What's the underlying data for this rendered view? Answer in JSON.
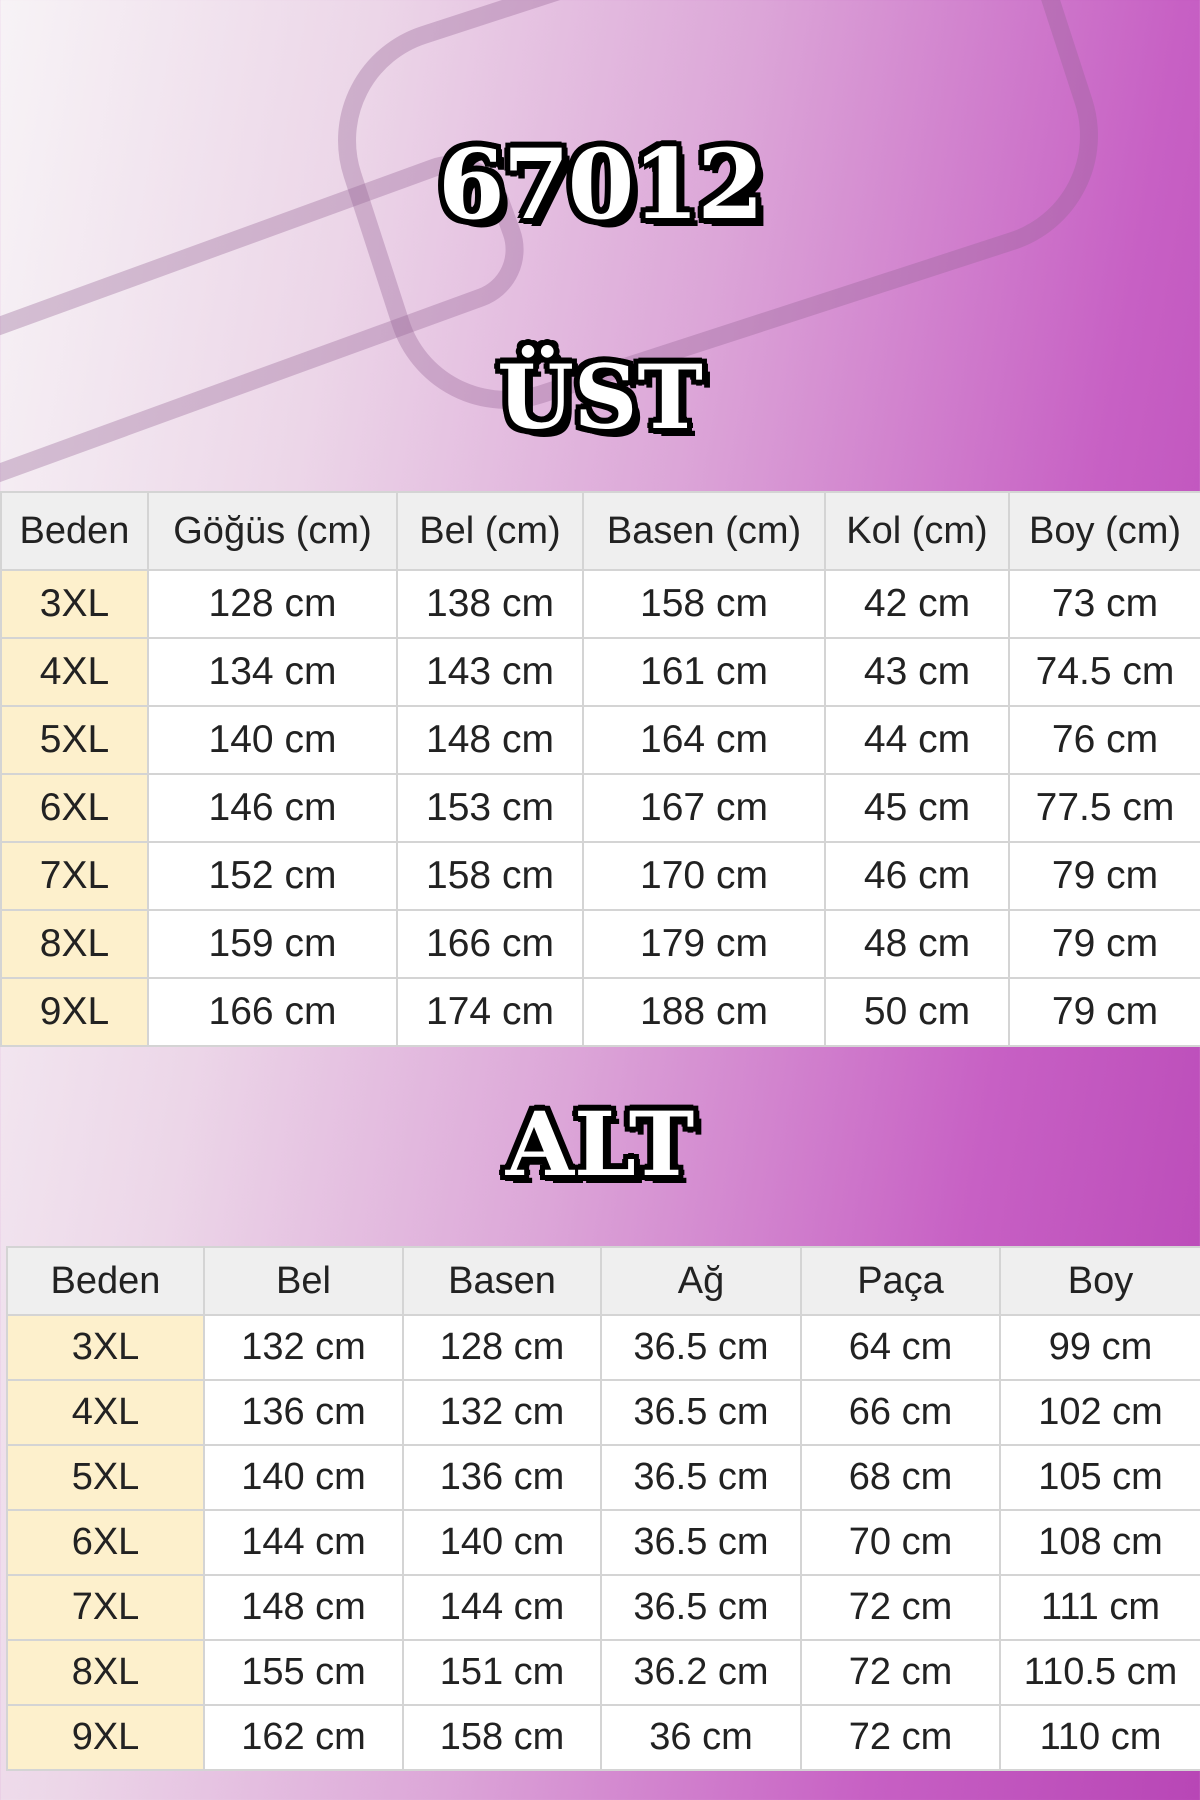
{
  "title": "67012",
  "colors": {
    "background_accent": "#c04fc0",
    "size_cell": "#fdf0cc",
    "header_cell": "#efefef"
  },
  "upper": {
    "heading": "ÜST",
    "columns": [
      "Beden",
      "Göğüs (cm)",
      "Bel (cm)",
      "Basen (cm)",
      "Kol (cm)",
      "Boy (cm)"
    ],
    "rows": [
      [
        "3XL",
        "128 cm",
        "138 cm",
        "158 cm",
        "42 cm",
        "73 cm"
      ],
      [
        "4XL",
        "134 cm",
        "143 cm",
        "161 cm",
        "43 cm",
        "74.5 cm"
      ],
      [
        "5XL",
        "140 cm",
        "148 cm",
        "164 cm",
        "44 cm",
        "76 cm"
      ],
      [
        "6XL",
        "146 cm",
        "153 cm",
        "167 cm",
        "45 cm",
        "77.5 cm"
      ],
      [
        "7XL",
        "152 cm",
        "158 cm",
        "170 cm",
        "46 cm",
        "79 cm"
      ],
      [
        "8XL",
        "159 cm",
        "166 cm",
        "179 cm",
        "48 cm",
        "79 cm"
      ],
      [
        "9XL",
        "166 cm",
        "174 cm",
        "188 cm",
        "50 cm",
        "79 cm"
      ]
    ]
  },
  "lower": {
    "heading": "ALT",
    "columns": [
      "Beden",
      "Bel",
      "Basen",
      "Ağ",
      "Paça",
      "Boy"
    ],
    "rows": [
      [
        "3XL",
        "132 cm",
        "128 cm",
        "36.5 cm",
        "64 cm",
        "99 cm"
      ],
      [
        "4XL",
        "136 cm",
        "132 cm",
        "36.5 cm",
        "66 cm",
        "102 cm"
      ],
      [
        "5XL",
        "140 cm",
        "136 cm",
        "36.5 cm",
        "68 cm",
        "105 cm"
      ],
      [
        "6XL",
        "144 cm",
        "140 cm",
        "36.5 cm",
        "70 cm",
        "108 cm"
      ],
      [
        "7XL",
        "148 cm",
        "144 cm",
        "36.5 cm",
        "72 cm",
        "111 cm"
      ],
      [
        "8XL",
        "155 cm",
        "151 cm",
        "36.2 cm",
        "72 cm",
        "110.5 cm"
      ],
      [
        "9XL",
        "162 cm",
        "158 cm",
        "36 cm",
        "72 cm",
        "110 cm"
      ]
    ]
  }
}
